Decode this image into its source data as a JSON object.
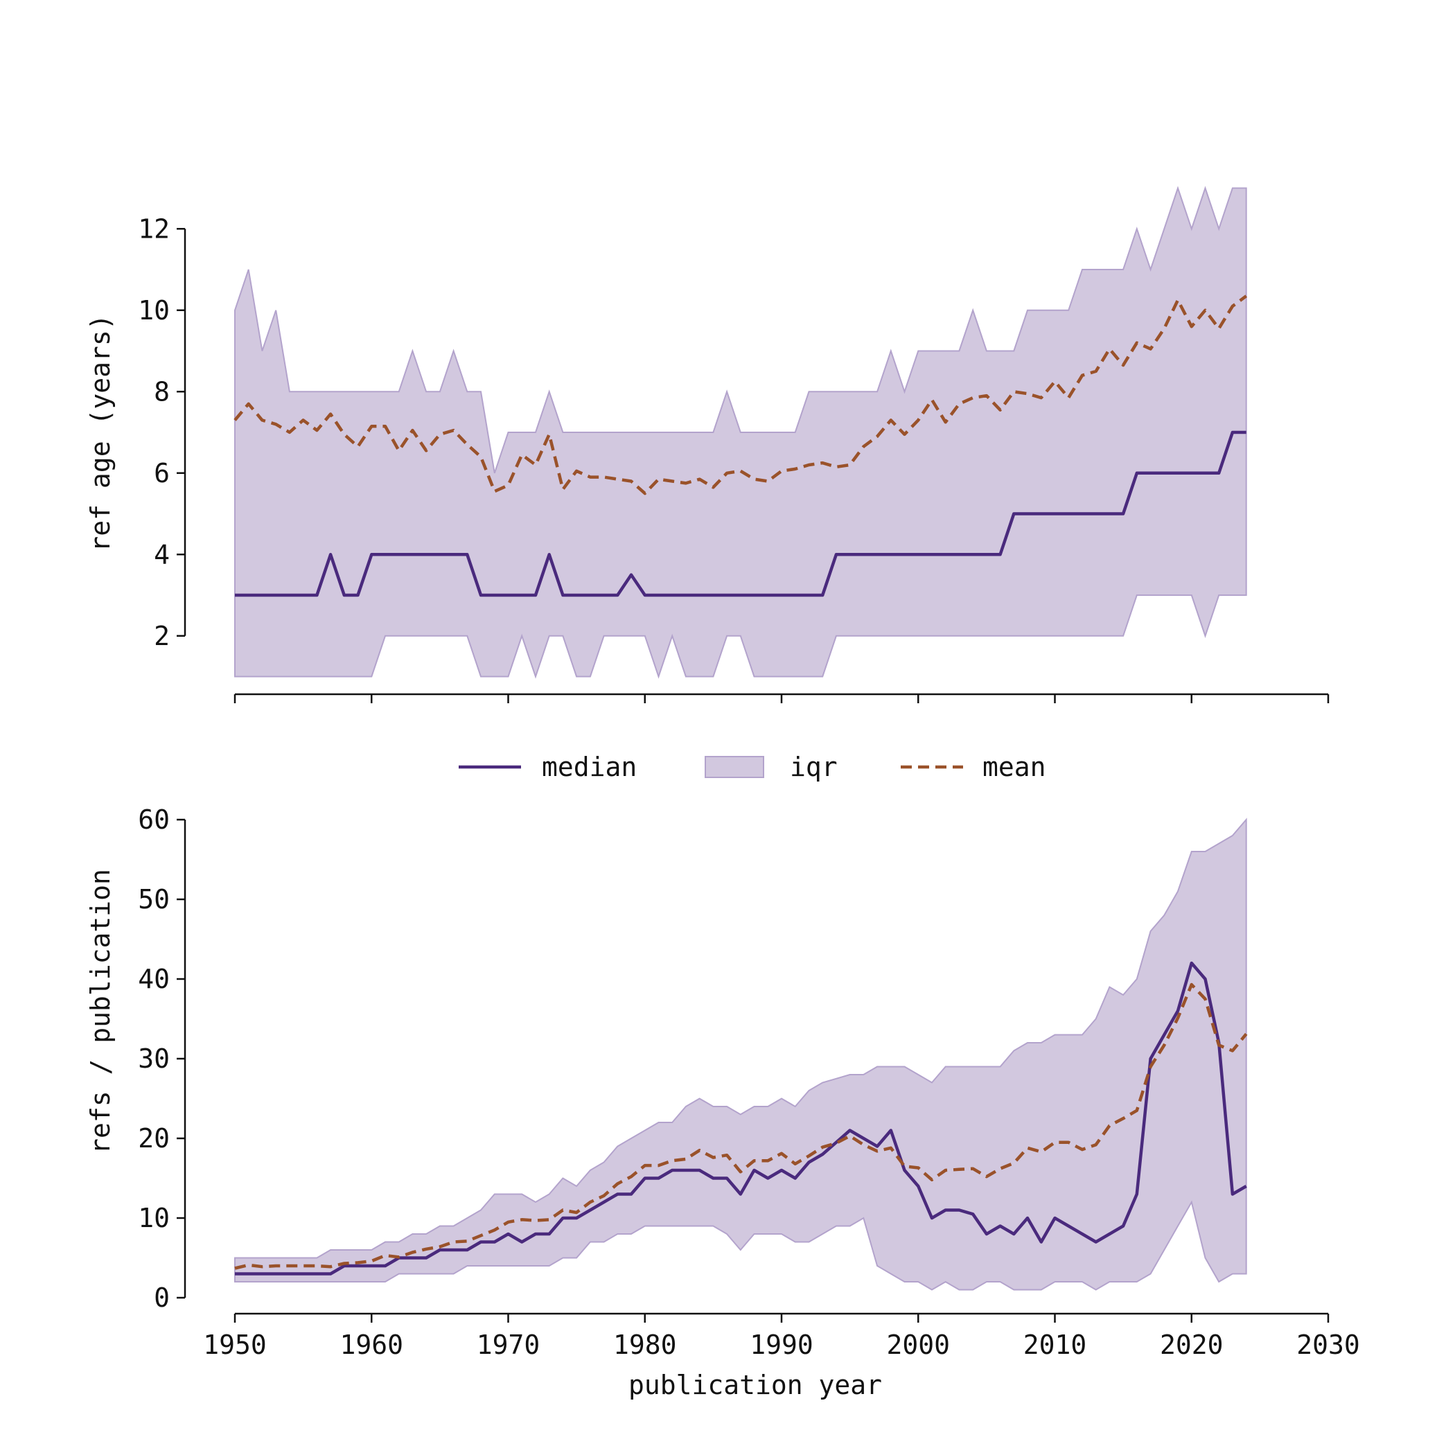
{
  "colors": {
    "median": "#4a2a7d",
    "iqr_fill": "#d2c8df",
    "iqr_edge": "#b3a3cc",
    "mean": "#9a522a",
    "axis": "#111111"
  },
  "legend": {
    "placement": "between panels, centered",
    "median": "median",
    "iqr": "iqr",
    "mean": "mean"
  },
  "chart_data": [
    {
      "type": "line",
      "ylabel": "ref age (years)",
      "xlabel": "",
      "xlim": [
        1950,
        2030
      ],
      "ylim": [
        0.6,
        12.6
      ],
      "xticks": [
        1950,
        1960,
        1970,
        1980,
        1990,
        2000,
        2010,
        2020,
        2030
      ],
      "xtick_labels_shown": false,
      "yticks": [
        2,
        4,
        6,
        8,
        10,
        12
      ],
      "grid": false,
      "x": [
        1950,
        1951,
        1952,
        1953,
        1954,
        1955,
        1956,
        1957,
        1958,
        1959,
        1960,
        1961,
        1962,
        1963,
        1964,
        1965,
        1966,
        1967,
        1968,
        1969,
        1970,
        1971,
        1972,
        1973,
        1974,
        1975,
        1976,
        1977,
        1978,
        1979,
        1980,
        1981,
        1982,
        1983,
        1984,
        1985,
        1986,
        1987,
        1988,
        1989,
        1990,
        1991,
        1992,
        1993,
        1994,
        1995,
        1996,
        1997,
        1998,
        1999,
        2000,
        2001,
        2002,
        2003,
        2004,
        2005,
        2006,
        2007,
        2008,
        2009,
        2010,
        2011,
        2012,
        2013,
        2014,
        2015,
        2016,
        2017,
        2018,
        2019,
        2020,
        2021,
        2022,
        2023,
        2024
      ],
      "series": [
        {
          "name": "median",
          "style": "solid",
          "values": [
            3,
            3,
            3,
            3,
            3,
            3,
            3,
            4,
            3,
            3,
            4,
            4,
            4,
            4,
            4,
            4,
            4,
            4,
            3,
            3,
            3,
            3,
            3,
            4,
            3,
            3,
            3,
            3,
            3,
            3.5,
            3,
            3,
            3,
            3,
            3,
            3,
            3,
            3,
            3,
            3,
            3,
            3,
            3,
            3,
            4,
            4,
            4,
            4,
            4,
            4,
            4,
            4,
            4,
            4,
            4,
            4,
            4,
            5,
            5,
            5,
            5,
            5,
            5,
            5,
            5,
            5,
            6,
            6,
            6,
            6,
            6,
            6,
            6,
            7,
            7
          ]
        },
        {
          "name": "mean",
          "style": "dashed",
          "values": [
            7.3,
            7.7,
            7.3,
            7.2,
            7.0,
            7.3,
            7.05,
            7.45,
            6.95,
            6.65,
            7.15,
            7.15,
            6.55,
            7.05,
            6.55,
            6.95,
            7.05,
            6.7,
            6.4,
            5.55,
            5.7,
            6.45,
            6.2,
            6.95,
            5.6,
            6.05,
            5.9,
            5.9,
            5.85,
            5.8,
            5.5,
            5.85,
            5.8,
            5.75,
            5.85,
            5.65,
            6.0,
            6.05,
            5.85,
            5.8,
            6.05,
            6.1,
            6.2,
            6.25,
            6.15,
            6.2,
            6.65,
            6.9,
            7.3,
            6.95,
            7.3,
            7.8,
            7.25,
            7.7,
            7.85,
            7.9,
            7.55,
            8.0,
            7.95,
            7.85,
            8.25,
            7.85,
            8.4,
            8.5,
            9.05,
            8.65,
            9.2,
            9.05,
            9.55,
            10.25,
            9.6,
            10.0,
            9.55,
            10.1,
            10.35
          ]
        },
        {
          "name": "iqr",
          "style": "band",
          "lower": [
            1,
            1,
            1,
            1,
            1,
            1,
            1,
            1,
            1,
            1,
            1,
            2,
            2,
            2,
            2,
            2,
            2,
            2,
            1,
            1,
            1,
            2,
            1,
            2,
            2,
            1,
            1,
            2,
            2,
            2,
            2,
            1,
            2,
            1,
            1,
            1,
            2,
            2,
            1,
            1,
            1,
            1,
            1,
            1,
            2,
            2,
            2,
            2,
            2,
            2,
            2,
            2,
            2,
            2,
            2,
            2,
            2,
            2,
            2,
            2,
            2,
            2,
            2,
            2,
            2,
            2,
            3,
            3,
            3,
            3,
            3,
            2,
            3,
            3,
            3
          ],
          "upper": [
            10,
            11,
            9,
            10,
            8,
            8,
            8,
            8,
            8,
            8,
            8,
            8,
            8,
            9,
            8,
            8,
            9,
            8,
            8,
            6,
            7,
            7,
            7,
            8,
            7,
            7,
            7,
            7,
            7,
            7,
            7,
            7,
            7,
            7,
            7,
            7,
            8,
            7,
            7,
            7,
            7,
            7,
            8,
            8,
            8,
            8,
            8,
            8,
            9,
            8,
            9,
            9,
            9,
            9,
            10,
            9,
            9,
            9,
            10,
            10,
            10,
            10,
            11,
            11,
            11,
            11,
            12,
            11,
            12,
            13,
            12,
            13,
            12,
            13,
            13
          ]
        }
      ]
    },
    {
      "type": "line",
      "ylabel": "refs / publication",
      "xlabel": "publication year",
      "xlim": [
        1950,
        2030
      ],
      "ylim": [
        -2,
        60
      ],
      "xticks": [
        1950,
        1960,
        1970,
        1980,
        1990,
        2000,
        2010,
        2020,
        2030
      ],
      "xtick_labels_shown": true,
      "yticks": [
        0,
        10,
        20,
        30,
        40,
        50,
        60
      ],
      "grid": false,
      "x": [
        1950,
        1951,
        1952,
        1953,
        1954,
        1955,
        1956,
        1957,
        1958,
        1959,
        1960,
        1961,
        1962,
        1963,
        1964,
        1965,
        1966,
        1967,
        1968,
        1969,
        1970,
        1971,
        1972,
        1973,
        1974,
        1975,
        1976,
        1977,
        1978,
        1979,
        1980,
        1981,
        1982,
        1983,
        1984,
        1985,
        1986,
        1987,
        1988,
        1989,
        1990,
        1991,
        1992,
        1993,
        1994,
        1995,
        1996,
        1997,
        1998,
        1999,
        2000,
        2001,
        2002,
        2003,
        2004,
        2005,
        2006,
        2007,
        2008,
        2009,
        2010,
        2011,
        2012,
        2013,
        2014,
        2015,
        2016,
        2017,
        2018,
        2019,
        2020,
        2021,
        2022,
        2023,
        2024
      ],
      "series": [
        {
          "name": "median",
          "style": "solid",
          "values": [
            3,
            3,
            3,
            3,
            3,
            3,
            3,
            3,
            4,
            4,
            4,
            4,
            5,
            5,
            5,
            6,
            6,
            6,
            7,
            7,
            8,
            7,
            8,
            8,
            10,
            10,
            11,
            12,
            13,
            13,
            15,
            15,
            16,
            16,
            16,
            15,
            15,
            13,
            16,
            15,
            16,
            15,
            17,
            18,
            19.5,
            21,
            20,
            19,
            21,
            16,
            14,
            10,
            11,
            11,
            10.5,
            8,
            9,
            8,
            10,
            7,
            10,
            9,
            8,
            7,
            8,
            9,
            13,
            30,
            33,
            36,
            42,
            40,
            32,
            13,
            14
          ]
        },
        {
          "name": "mean",
          "style": "dashed",
          "values": [
            3.7,
            4.1,
            3.9,
            4.0,
            4.0,
            4.0,
            4.0,
            3.9,
            4.3,
            4.4,
            4.6,
            5.3,
            5.1,
            5.7,
            6.1,
            6.4,
            7.0,
            7.1,
            7.8,
            8.5,
            9.5,
            9.8,
            9.7,
            9.8,
            11.0,
            10.7,
            12.0,
            12.8,
            14.3,
            15.2,
            16.6,
            16.6,
            17.2,
            17.4,
            18.5,
            17.6,
            17.9,
            15.8,
            17.2,
            17.2,
            18.1,
            16.8,
            17.8,
            18.9,
            19.4,
            20.3,
            19.2,
            18.4,
            18.8,
            16.5,
            16.3,
            14.8,
            16.0,
            16.1,
            16.2,
            15.2,
            16.2,
            16.9,
            18.8,
            18.3,
            19.5,
            19.5,
            18.6,
            19.2,
            21.6,
            22.5,
            23.5,
            29,
            31.7,
            35.1,
            39.3,
            37.5,
            31.7,
            31.0,
            33.1
          ]
        },
        {
          "name": "iqr",
          "style": "band",
          "lower": [
            2,
            2,
            2,
            2,
            2,
            2,
            2,
            2,
            2,
            2,
            2,
            2,
            3,
            3,
            3,
            3,
            3,
            4,
            4,
            4,
            4,
            4,
            4,
            4,
            5,
            5,
            7,
            7,
            8,
            8,
            9,
            9,
            9,
            9,
            9,
            9,
            8,
            6,
            8,
            8,
            8,
            7,
            7,
            8,
            9,
            9,
            10,
            4,
            3,
            2,
            2,
            1,
            2,
            1,
            1,
            2,
            2,
            1,
            1,
            1,
            2,
            2,
            2,
            1,
            2,
            2,
            2,
            3,
            6,
            9,
            12,
            5,
            2,
            3,
            3
          ],
          "upper": [
            5,
            5,
            5,
            5,
            5,
            5,
            5,
            6,
            6,
            6,
            6,
            7,
            7,
            8,
            8,
            9,
            9,
            10,
            11,
            13,
            13,
            13,
            12,
            13,
            15,
            14,
            16,
            17,
            19,
            20,
            21,
            22,
            22,
            24,
            25,
            24,
            24,
            23,
            24,
            24,
            25,
            24,
            26,
            27,
            27.5,
            28,
            28,
            29,
            29,
            29,
            28,
            27,
            29,
            29,
            29,
            29,
            29,
            31,
            32,
            32,
            33,
            33,
            33,
            35,
            39,
            38,
            40,
            46,
            48,
            51,
            56,
            56,
            57,
            58,
            60
          ]
        }
      ]
    }
  ]
}
